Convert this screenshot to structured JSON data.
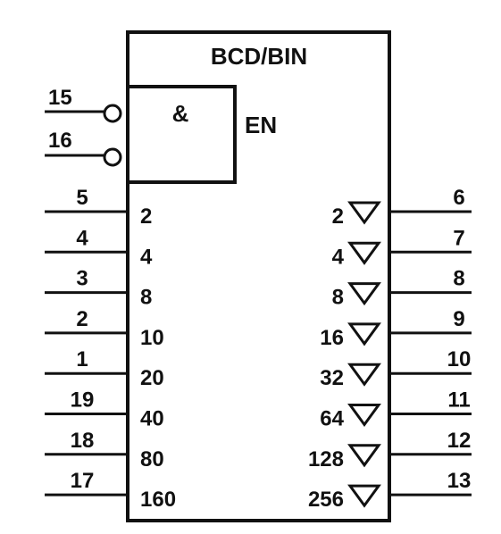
{
  "block": {
    "title": "BCD/BIN"
  },
  "enable": {
    "gate": "&",
    "label": "EN",
    "pins": [
      "15",
      "16"
    ]
  },
  "inputs": [
    {
      "pin": "5",
      "weight": "2"
    },
    {
      "pin": "4",
      "weight": "4"
    },
    {
      "pin": "3",
      "weight": "8"
    },
    {
      "pin": "2",
      "weight": "10"
    },
    {
      "pin": "1",
      "weight": "20"
    },
    {
      "pin": "19",
      "weight": "40"
    },
    {
      "pin": "18",
      "weight": "80"
    },
    {
      "pin": "17",
      "weight": "160"
    }
  ],
  "outputs": [
    {
      "pin": "6",
      "weight": "2"
    },
    {
      "pin": "7",
      "weight": "4"
    },
    {
      "pin": "8",
      "weight": "8"
    },
    {
      "pin": "9",
      "weight": "16"
    },
    {
      "pin": "10",
      "weight": "32"
    },
    {
      "pin": "11",
      "weight": "64"
    },
    {
      "pin": "12",
      "weight": "128"
    },
    {
      "pin": "13",
      "weight": "256"
    }
  ],
  "colors": {
    "ink": "#111111",
    "background": "#ffffff"
  }
}
